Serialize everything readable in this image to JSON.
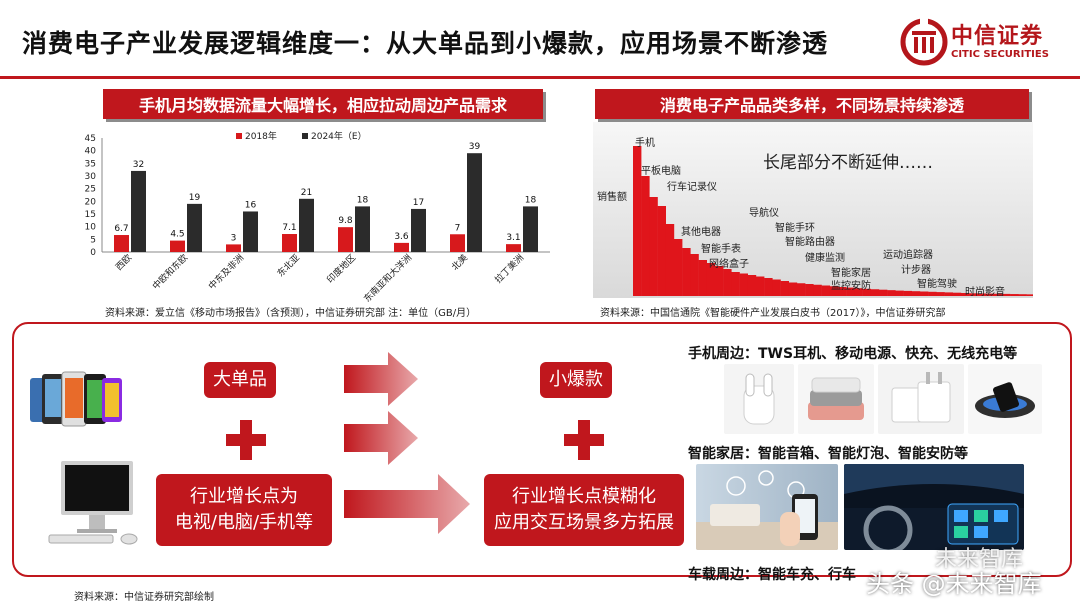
{
  "header": {
    "title": "消费电子产业发展逻辑维度一：从大单品到小爆款，应用场景不断渗透",
    "logo_cn": "中信证券",
    "logo_en": "CITIC SECURITIES",
    "brand_color": "#c0171d"
  },
  "left_panel": {
    "title": "手机月均数据流量大幅增长，相应拉动周边产品需求",
    "source": "资料来源：爱立信《移动市场报告》（含预测），中信证券研究部 注：单位（GB/月）"
  },
  "chart_data": {
    "type": "bar",
    "categories": [
      "西欧",
      "中欧和东欧",
      "中东及非洲",
      "东北亚",
      "印度地区",
      "东南亚和大洋洲",
      "北美",
      "拉丁美洲"
    ],
    "series": [
      {
        "name": "2018年",
        "values": [
          6.7,
          4.5,
          3,
          7.1,
          9.8,
          3.6,
          7,
          3.1
        ],
        "color": "#d7191c"
      },
      {
        "name": "2024年（E）",
        "values": [
          32,
          19,
          16,
          21,
          18,
          17,
          39,
          18
        ],
        "color": "#2b2b2b"
      }
    ],
    "data_labels": [
      [
        "6.7",
        "4.5",
        "3",
        "7.1",
        "9.8",
        "3.6",
        "7",
        "3.1"
      ],
      [
        "32",
        "19",
        "16",
        "21",
        "18",
        "17",
        "39",
        "18"
      ]
    ],
    "yticks": [
      "0",
      "5",
      "10",
      "15",
      "20",
      "25",
      "30",
      "35",
      "40",
      "45"
    ],
    "ylim": [
      0,
      45
    ],
    "legend": "top-center",
    "grid": false
  },
  "right_panel": {
    "title": "消费电子产品品类多样，不同场景持续渗透",
    "y_label": "销售额",
    "headline": "长尾部分不断延伸……",
    "labels": [
      "手机",
      "平板电脑",
      "行车记录仪",
      "其他电器",
      "智能手表",
      "网络盒子",
      "导航仪",
      "智能手环",
      "智能路由器",
      "健康监测",
      "智能家居",
      "监控安防",
      "运动追踪器",
      "计步器",
      "智能驾驶",
      "时尚影音"
    ],
    "relative_heights": [
      1.0,
      0.8,
      0.66,
      0.6,
      0.48,
      0.38,
      0.32,
      0.28,
      0.24,
      0.22,
      0.2,
      0.18,
      0.16,
      0.15,
      0.14,
      0.13,
      0.12,
      0.11,
      0.1,
      0.09,
      0.085,
      0.08,
      0.075,
      0.07,
      0.065,
      0.06,
      0.056,
      0.052,
      0.048,
      0.045,
      0.042,
      0.039,
      0.036,
      0.034,
      0.032,
      0.03,
      0.028,
      0.026,
      0.024,
      0.022,
      0.02,
      0.018,
      0.017,
      0.016,
      0.015,
      0.014,
      0.013,
      0.012,
      0.011,
      0.01
    ],
    "source": "资料来源：中国信通院《智能硬件产业发展白皮书（2017）》，中信证券研究部"
  },
  "lower": {
    "big_item": "大单品",
    "small_item": "小爆款",
    "left_box_line1": "行业增长点为",
    "left_box_line2": "电视/电脑/手机等",
    "right_box_line1": "行业增长点模糊化",
    "right_box_line2": "应用交互场景多方拓展",
    "phone_accessories": "手机周边：TWS耳机、移动电源、快充、无线充电等",
    "smart_home": "智能家居：智能音箱、智能灯泡、智能安防等",
    "car": "车载周边：智能车充、行车"
  },
  "footer": {
    "source": "资料来源：中信证券研究部绘制",
    "watermark_1": "未来智库",
    "watermark_2": "头条 @未来智库"
  }
}
